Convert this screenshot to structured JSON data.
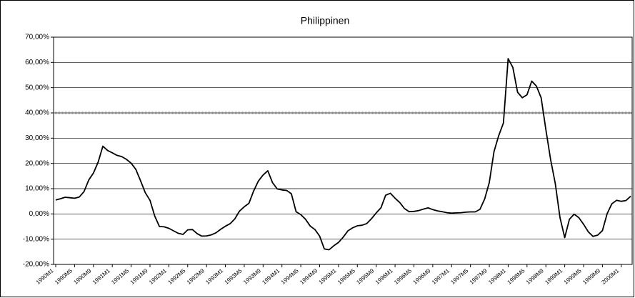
{
  "chart_data": {
    "type": "line",
    "title": "Philippinen",
    "categories": [
      "1990M1",
      null,
      null,
      null,
      "1990M5",
      null,
      null,
      null,
      "1990M9",
      null,
      null,
      null,
      "1991M1",
      null,
      null,
      null,
      "1991M5",
      null,
      null,
      null,
      "1991M9",
      null,
      null,
      null,
      "1992M1",
      null,
      null,
      null,
      "1992M5",
      null,
      null,
      null,
      "1992M9",
      null,
      null,
      null,
      "1993M1",
      null,
      null,
      null,
      "1993M5",
      null,
      null,
      null,
      "1993M9",
      null,
      null,
      null,
      "1994M1",
      null,
      null,
      null,
      "1994M5",
      null,
      null,
      null,
      "1994M9",
      null,
      null,
      null,
      "1995M1",
      null,
      null,
      null,
      "1995M5",
      null,
      null,
      null,
      "1995M9",
      null,
      null,
      null,
      "1996M1",
      null,
      null,
      null,
      "1996M5",
      null,
      null,
      null,
      "1996M9",
      null,
      null,
      null,
      "1997M1",
      null,
      null,
      null,
      "1997M5",
      null,
      null,
      null,
      "1997M9",
      null,
      null,
      null,
      "1998M1",
      null,
      null,
      null,
      "1998M5",
      null,
      null,
      null,
      "1998M9",
      null,
      null,
      null,
      "1999M1",
      null,
      null,
      null,
      "1999M5",
      null,
      null,
      null,
      "1999M9",
      null,
      null,
      null,
      "2000M1",
      null,
      null
    ],
    "series": [
      {
        "color": "#000000",
        "values": [
          5.5,
          6.0,
          6.6,
          6.4,
          6.2,
          6.7,
          8.8,
          13.4,
          16.2,
          20.5,
          26.8,
          25.1,
          24.2,
          23.2,
          22.7,
          21.6,
          20.1,
          17.6,
          13.1,
          8.4,
          5.4,
          -0.8,
          -5,
          -5.1,
          -5.7,
          -6.7,
          -7.7,
          -8.1,
          -6.3,
          -6.2,
          -7.8,
          -8.8,
          -8.7,
          -8.3,
          -7.5,
          -6.1,
          -4.9,
          -3.9,
          -2,
          1.1,
          2.8,
          4.2,
          9.1,
          13,
          15.4,
          17.1,
          12.4,
          9.9,
          9.5,
          9.3,
          8,
          0.9,
          -0.3,
          -2.1,
          -4.8,
          -6.2,
          -8.8,
          -13.9,
          -14.2,
          -12.6,
          -11.3,
          -9.2,
          -6.7,
          -5.5,
          -4.7,
          -4.5,
          -3.8,
          -1.9,
          0.4,
          2.4,
          7.4,
          8.2,
          6.2,
          4.5,
          2.1,
          0.9,
          1,
          1.3,
          1.9,
          2.4,
          1.7,
          1.2,
          0.9,
          0.5,
          0.3,
          0.4,
          0.5,
          0.7,
          0.8,
          0.8,
          1.8,
          5.9,
          12.4,
          24.7,
          31,
          36,
          61.5,
          58,
          48.2,
          46,
          47.2,
          52.6,
          50.6,
          46,
          33.4,
          21.6,
          12,
          -1.5,
          -9.4,
          -2.1,
          -0.1,
          -1.5,
          -4.1,
          -7.1,
          -8.9,
          -8.4,
          -6.6,
          0.1,
          4,
          5.4,
          5,
          5.3,
          7
        ]
      }
    ],
    "ylim": [
      -20,
      70
    ],
    "yticks": [
      {
        "value": -20,
        "label": "-20,00%"
      },
      {
        "value": -10,
        "label": "-10,00%"
      },
      {
        "value": 0,
        "label": "0,00%"
      },
      {
        "value": 10,
        "label": "10,00%"
      },
      {
        "value": 20,
        "label": "20,00%"
      },
      {
        "value": 30,
        "label": "30,00%"
      },
      {
        "value": 40,
        "label": "40,00%"
      },
      {
        "value": 50,
        "label": "50,00%"
      },
      {
        "value": 60,
        "label": "60,00%"
      },
      {
        "value": 70,
        "label": "70,00%"
      }
    ],
    "grid": true,
    "reference_line": 40
  }
}
